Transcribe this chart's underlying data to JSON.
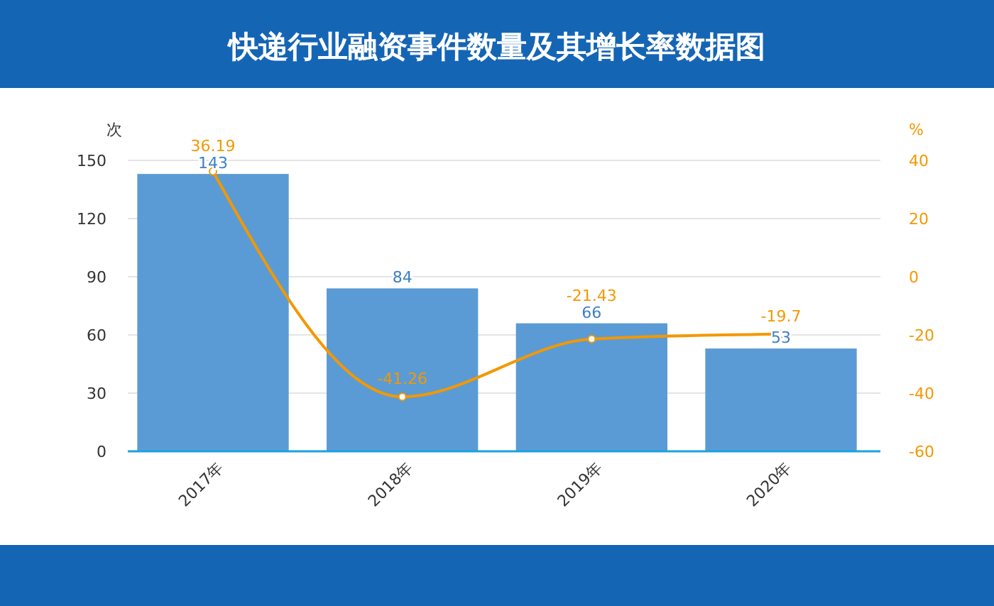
{
  "chart_data": {
    "type": "bar",
    "title": "快递行业融资事件数量及其增长率数据图",
    "ylabel": "次",
    "y2label": "%",
    "categories": [
      "2017年",
      "2018年",
      "2019年",
      "2020年"
    ],
    "series": [
      {
        "color": "#5b9bd5",
        "values": [
          143,
          84,
          66,
          53
        ]
      },
      {
        "type": "line",
        "axis": "y2",
        "color": "#f39800",
        "values": [
          36.19,
          -41.26,
          -21.43,
          -19.7
        ],
        "marker": "circle"
      }
    ],
    "ylim": [
      0,
      150
    ],
    "yticks": [
      0,
      30,
      60,
      90,
      120,
      150
    ],
    "y2lim": [
      -60,
      40
    ],
    "y2ticks": [
      -60,
      -40,
      -20,
      0,
      20,
      40
    ],
    "grid": "y",
    "data_labels": true
  }
}
